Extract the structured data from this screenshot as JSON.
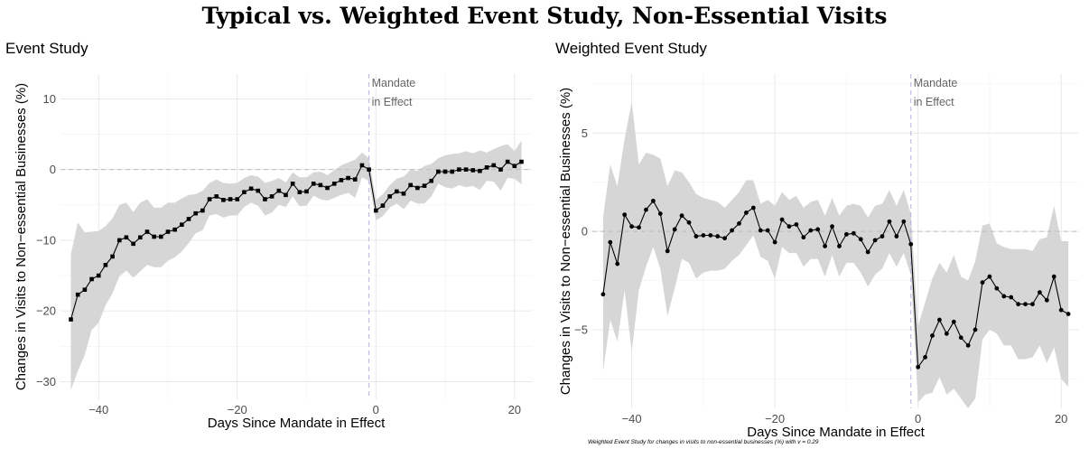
{
  "title": "Typical vs. Weighted Event Study, Non-Essential Visits",
  "chart_data": [
    {
      "type": "line",
      "title": "Event Study",
      "xlabel": "Days Since Mandate in Effect",
      "ylabel": "Changes in Visits to Non−essential Businesses (%)",
      "xlim": [
        -45.5,
        22.5
      ],
      "ylim": [
        -32.5,
        13.5
      ],
      "xticks": [
        -40,
        -20,
        0,
        20
      ],
      "xtick_labels": [
        "−40",
        "−20",
        "0",
        "20"
      ],
      "yticks": [
        10,
        0,
        -10,
        -20,
        -30
      ],
      "ytick_labels": [
        "10",
        "0",
        "−10",
        "−20",
        "−30"
      ],
      "marker": "square",
      "annotation": {
        "x": -1,
        "lines": [
          "Mandate",
          "in Effect"
        ]
      },
      "x": [
        -44,
        -43,
        -42,
        -41,
        -40,
        -39,
        -38,
        -37,
        -36,
        -35,
        -34,
        -33,
        -32,
        -31,
        -30,
        -29,
        -28,
        -27,
        -26,
        -25,
        -24,
        -23,
        -22,
        -21,
        -20,
        -19,
        -18,
        -17,
        -16,
        -15,
        -14,
        -13,
        -12,
        -11,
        -10,
        -9,
        -8,
        -7,
        -6,
        -5,
        -4,
        -3,
        -2,
        -1,
        0,
        1,
        2,
        3,
        4,
        5,
        6,
        7,
        8,
        9,
        10,
        11,
        12,
        13,
        14,
        15,
        16,
        17,
        18,
        19,
        20,
        21
      ],
      "y": [
        -21.2,
        -17.7,
        -17.0,
        -15.5,
        -15.0,
        -13.5,
        -12.3,
        -10.0,
        -9.6,
        -10.5,
        -9.6,
        -8.8,
        -9.5,
        -9.5,
        -8.8,
        -8.5,
        -7.8,
        -7.0,
        -6.2,
        -5.8,
        -4.2,
        -3.8,
        -4.3,
        -4.2,
        -4.2,
        -3.2,
        -2.7,
        -3.0,
        -4.2,
        -3.8,
        -3.0,
        -3.6,
        -2.0,
        -3.2,
        -3.1,
        -2.0,
        -2.2,
        -2.6,
        -2.0,
        -1.5,
        -1.2,
        -1.4,
        0.6,
        0.0,
        -5.8,
        -5.1,
        -3.8,
        -3.1,
        -3.4,
        -2.2,
        -2.6,
        -2.3,
        -1.6,
        -0.3,
        -0.3,
        -0.3,
        0.0,
        0.0,
        -0.1,
        -0.2,
        0.3,
        0.6,
        0.0,
        1.1,
        0.5,
        1.1
      ],
      "ci_upper": [
        -12.0,
        -7.5,
        -8.9,
        -8.8,
        -8.7,
        -8.0,
        -6.9,
        -5.0,
        -4.7,
        -6.0,
        -4.7,
        -4.2,
        -5.4,
        -5.4,
        -4.7,
        -4.7,
        -4.1,
        -3.6,
        -3.5,
        -3.0,
        -1.9,
        -1.4,
        -1.9,
        -2.0,
        -1.9,
        -1.2,
        -0.8,
        -1.0,
        -1.9,
        -1.6,
        -1.2,
        -1.8,
        -0.4,
        -1.1,
        -1.1,
        -0.4,
        -0.3,
        -0.8,
        -0.1,
        0.6,
        1.0,
        1.4,
        2.4,
        1.6,
        -4.3,
        -3.5,
        -2.2,
        -1.3,
        -1.0,
        0.0,
        -0.2,
        0.5,
        0.8,
        1.6,
        2.0,
        2.2,
        2.3,
        2.6,
        2.3,
        2.7,
        2.4,
        2.9,
        3.3,
        3.6,
        2.6,
        4.1
      ],
      "ci_lower": [
        -31.2,
        -28.5,
        -26.2,
        -22.7,
        -21.7,
        -19.2,
        -17.5,
        -15.1,
        -14.3,
        -15.3,
        -14.4,
        -13.5,
        -13.8,
        -13.8,
        -12.9,
        -12.4,
        -11.6,
        -10.4,
        -9.0,
        -8.6,
        -6.5,
        -6.3,
        -6.8,
        -6.5,
        -6.5,
        -5.3,
        -4.7,
        -5.1,
        -6.5,
        -6.1,
        -5.0,
        -5.3,
        -3.8,
        -5.2,
        -5.1,
        -3.7,
        -4.2,
        -4.4,
        -4.0,
        -3.6,
        -3.3,
        -4.0,
        -1.1,
        -1.6,
        -7.2,
        -6.6,
        -5.4,
        -4.8,
        -5.6,
        -4.4,
        -4.8,
        -4.8,
        -3.8,
        -2.0,
        -2.5,
        -2.7,
        -2.2,
        -2.5,
        -2.3,
        -2.9,
        -1.6,
        -1.7,
        -3.0,
        -1.2,
        -1.3,
        -2.1
      ]
    },
    {
      "type": "line",
      "title": "Weighted Event Study",
      "xlabel": "Days Since Mandate in Effect",
      "ylabel": "Changes in Visits to Non−essential Businesses (%)",
      "xlim": [
        -45.5,
        22.5
      ],
      "ylim": [
        -9.0,
        8.0
      ],
      "xticks": [
        -40,
        -20,
        0,
        20
      ],
      "xtick_labels": [
        "−40",
        "−20",
        "0",
        "20"
      ],
      "yticks": [
        5,
        0,
        -5
      ],
      "ytick_labels": [
        "5",
        "0",
        "−5"
      ],
      "marker": "circle",
      "annotation": {
        "x": -1,
        "lines": [
          "Mandate",
          "in Effect"
        ]
      },
      "caption": "Weighted Event Study for changes in visits to non-essential businesses (%) with v = 0.29",
      "x": [
        -44,
        -43,
        -42,
        -41,
        -40,
        -39,
        -38,
        -37,
        -36,
        -35,
        -34,
        -33,
        -32,
        -31,
        -30,
        -29,
        -28,
        -27,
        -26,
        -25,
        -24,
        -23,
        -22,
        -21,
        -20,
        -19,
        -18,
        -17,
        -16,
        -15,
        -14,
        -13,
        -12,
        -11,
        -10,
        -9,
        -8,
        -7,
        -6,
        -5,
        -4,
        -3,
        -2,
        -1,
        0,
        1,
        2,
        3,
        4,
        5,
        6,
        7,
        8,
        9,
        10,
        11,
        12,
        13,
        14,
        15,
        16,
        17,
        18,
        19,
        20,
        21
      ],
      "y": [
        -3.2,
        -0.55,
        -1.65,
        0.85,
        0.25,
        0.2,
        1.1,
        1.55,
        0.9,
        -1.0,
        0.1,
        0.8,
        0.45,
        -0.25,
        -0.2,
        -0.2,
        -0.25,
        -0.35,
        0.05,
        0.4,
        0.95,
        1.2,
        0.05,
        0.05,
        -0.55,
        0.6,
        0.25,
        0.35,
        -0.3,
        0.05,
        0.1,
        -0.75,
        0.25,
        -0.75,
        -0.15,
        -0.1,
        -0.4,
        -1.05,
        -0.45,
        -0.25,
        0.5,
        -0.25,
        0.5,
        -0.65,
        -6.9,
        -6.4,
        -5.3,
        -4.5,
        -5.2,
        -4.6,
        -5.4,
        -5.8,
        -5.0,
        -2.6,
        -2.3,
        -2.9,
        -3.3,
        -3.35,
        -3.7,
        -3.7,
        -3.7,
        -3.1,
        -3.5,
        -2.3,
        -4.0,
        -4.2
      ],
      "ci_upper": [
        0.7,
        3.4,
        2.3,
        4.7,
        6.6,
        3.4,
        4.0,
        3.9,
        3.7,
        2.3,
        3.1,
        3.0,
        2.5,
        1.9,
        1.7,
        1.6,
        1.5,
        1.2,
        1.6,
        2.0,
        2.6,
        2.6,
        1.4,
        1.6,
        1.3,
        2.0,
        1.6,
        1.8,
        1.2,
        1.5,
        1.6,
        0.8,
        1.7,
        0.8,
        1.3,
        1.4,
        1.3,
        0.7,
        1.3,
        1.4,
        2.1,
        1.3,
        2.1,
        0.9,
        -4.8,
        -3.6,
        -2.4,
        -1.6,
        -2.1,
        -1.2,
        -2.3,
        -2.5,
        -1.5,
        0.3,
        0.4,
        -0.6,
        -0.8,
        -0.9,
        -0.9,
        -0.9,
        -1.0,
        -0.4,
        -0.3,
        1.3,
        -0.5,
        -0.5
      ],
      "ci_lower": [
        -7.1,
        -4.5,
        -5.6,
        -3.0,
        -6.1,
        -3.0,
        -1.8,
        -0.8,
        -1.9,
        -4.3,
        -2.9,
        -1.4,
        -1.6,
        -2.4,
        -2.1,
        -2.0,
        -2.0,
        -1.9,
        -1.5,
        -1.2,
        -0.7,
        -0.2,
        -1.3,
        -1.5,
        -2.4,
        -0.8,
        -1.1,
        -1.1,
        -1.8,
        -1.4,
        -1.4,
        -2.3,
        -1.2,
        -2.3,
        -1.6,
        -1.6,
        -2.1,
        -2.8,
        -2.2,
        -1.9,
        -1.1,
        -1.8,
        -1.1,
        -2.2,
        -8.7,
        -8.3,
        -8.2,
        -7.4,
        -8.3,
        -8.0,
        -8.5,
        -9.0,
        -8.5,
        -5.5,
        -5.0,
        -5.2,
        -5.8,
        -5.8,
        -6.5,
        -6.5,
        -6.4,
        -5.8,
        -6.7,
        -5.9,
        -7.5,
        -7.9
      ]
    }
  ]
}
